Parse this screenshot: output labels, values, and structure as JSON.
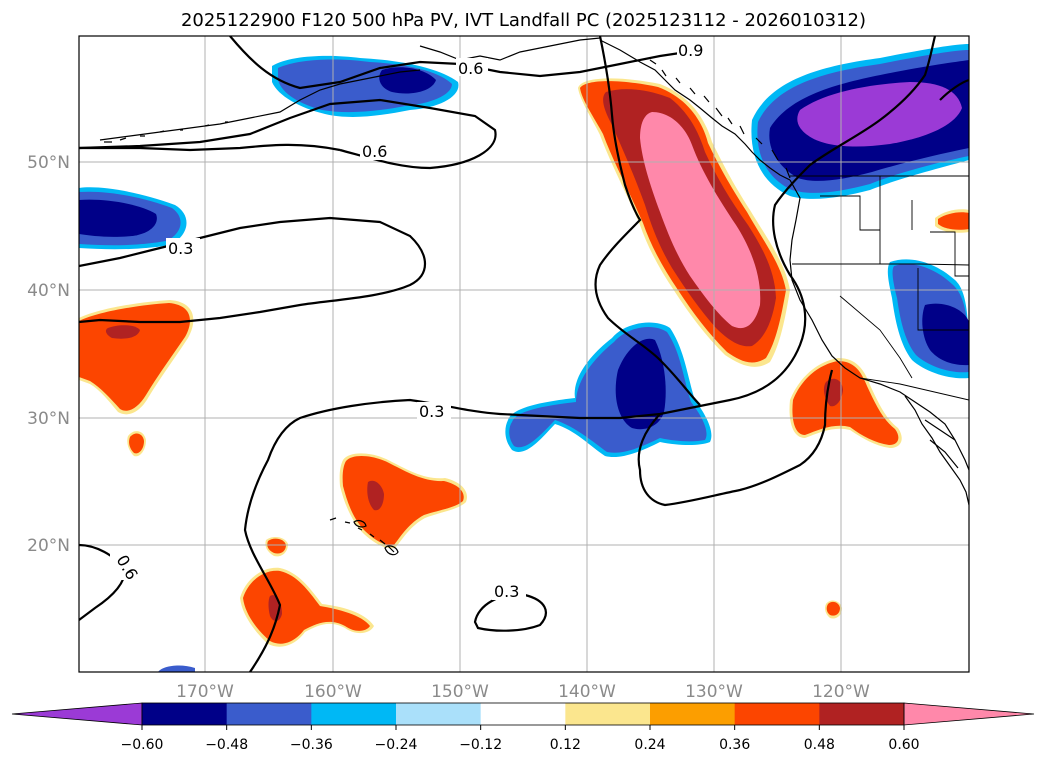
{
  "title": "2025122900 F120 500 hPa PV, IVT Landfall PC (2025123112 - 2026010312)",
  "axes": {
    "lat_labels": [
      "50°N",
      "40°N",
      "30°N",
      "20°N"
    ],
    "lon_labels": [
      "170°W",
      "160°W",
      "150°W",
      "140°W",
      "130°W",
      "120°W"
    ]
  },
  "contour_labels": [
    "0.9",
    "0.6",
    "0.6",
    "0.3",
    "0.3",
    "0.6",
    "0.3"
  ],
  "colorbar": {
    "ticks": [
      "−0.60",
      "−0.48",
      "−0.36",
      "−0.24",
      "−0.12",
      "0.12",
      "0.24",
      "0.36",
      "0.48",
      "0.60"
    ],
    "colors": [
      "#9b3ad6",
      "#000088",
      "#3a5ccc",
      "#00b8f5",
      "#aae0fa",
      "#ffffff",
      "#fbe68e",
      "#fc9e00",
      "#fc4500",
      "#b02222",
      "#ff88aa"
    ]
  },
  "colors": {
    "neg_1": "#3a5ccc",
    "neg_2": "#000088",
    "neg_3": "#9b3ad6",
    "neg_edge": "#00b8f5",
    "pos_edge": "#fbe68e",
    "pos_1": "#fc4500",
    "pos_2": "#b02222",
    "pos_3": "#ff88aa"
  }
}
